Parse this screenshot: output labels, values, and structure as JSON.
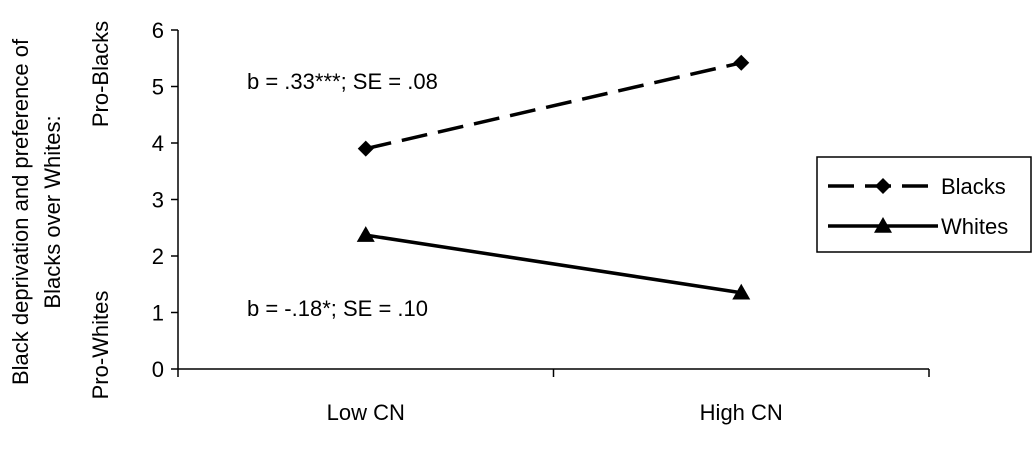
{
  "chart_data": {
    "type": "line",
    "title": "",
    "xlabel": "",
    "ylabel": {
      "lines": [
        "Black deprivation and preference of",
        "Blacks over Whites:"
      ],
      "top_anchor": "Pro-Blacks",
      "bottom_anchor": "Pro-Whites"
    },
    "categories": [
      "Low CN",
      "High CN"
    ],
    "ylim": [
      0,
      6
    ],
    "yticks": [
      "0",
      "1",
      "2",
      "3",
      "4",
      "5",
      "6"
    ],
    "grid": false,
    "legend_position": "right",
    "series": [
      {
        "name": "Blacks",
        "values": [
          3.9,
          5.42
        ],
        "line_style": "dashed",
        "marker": "diamond",
        "color": "#000000"
      },
      {
        "name": "Whites",
        "values": [
          2.37,
          1.35
        ],
        "line_style": "solid",
        "marker": "triangle",
        "color": "#000000"
      }
    ],
    "annotations": [
      {
        "text": "b = .33***; SE = .08",
        "series": "Blacks"
      },
      {
        "text": "b = -.18*; SE = .10",
        "series": "Whites"
      }
    ]
  }
}
